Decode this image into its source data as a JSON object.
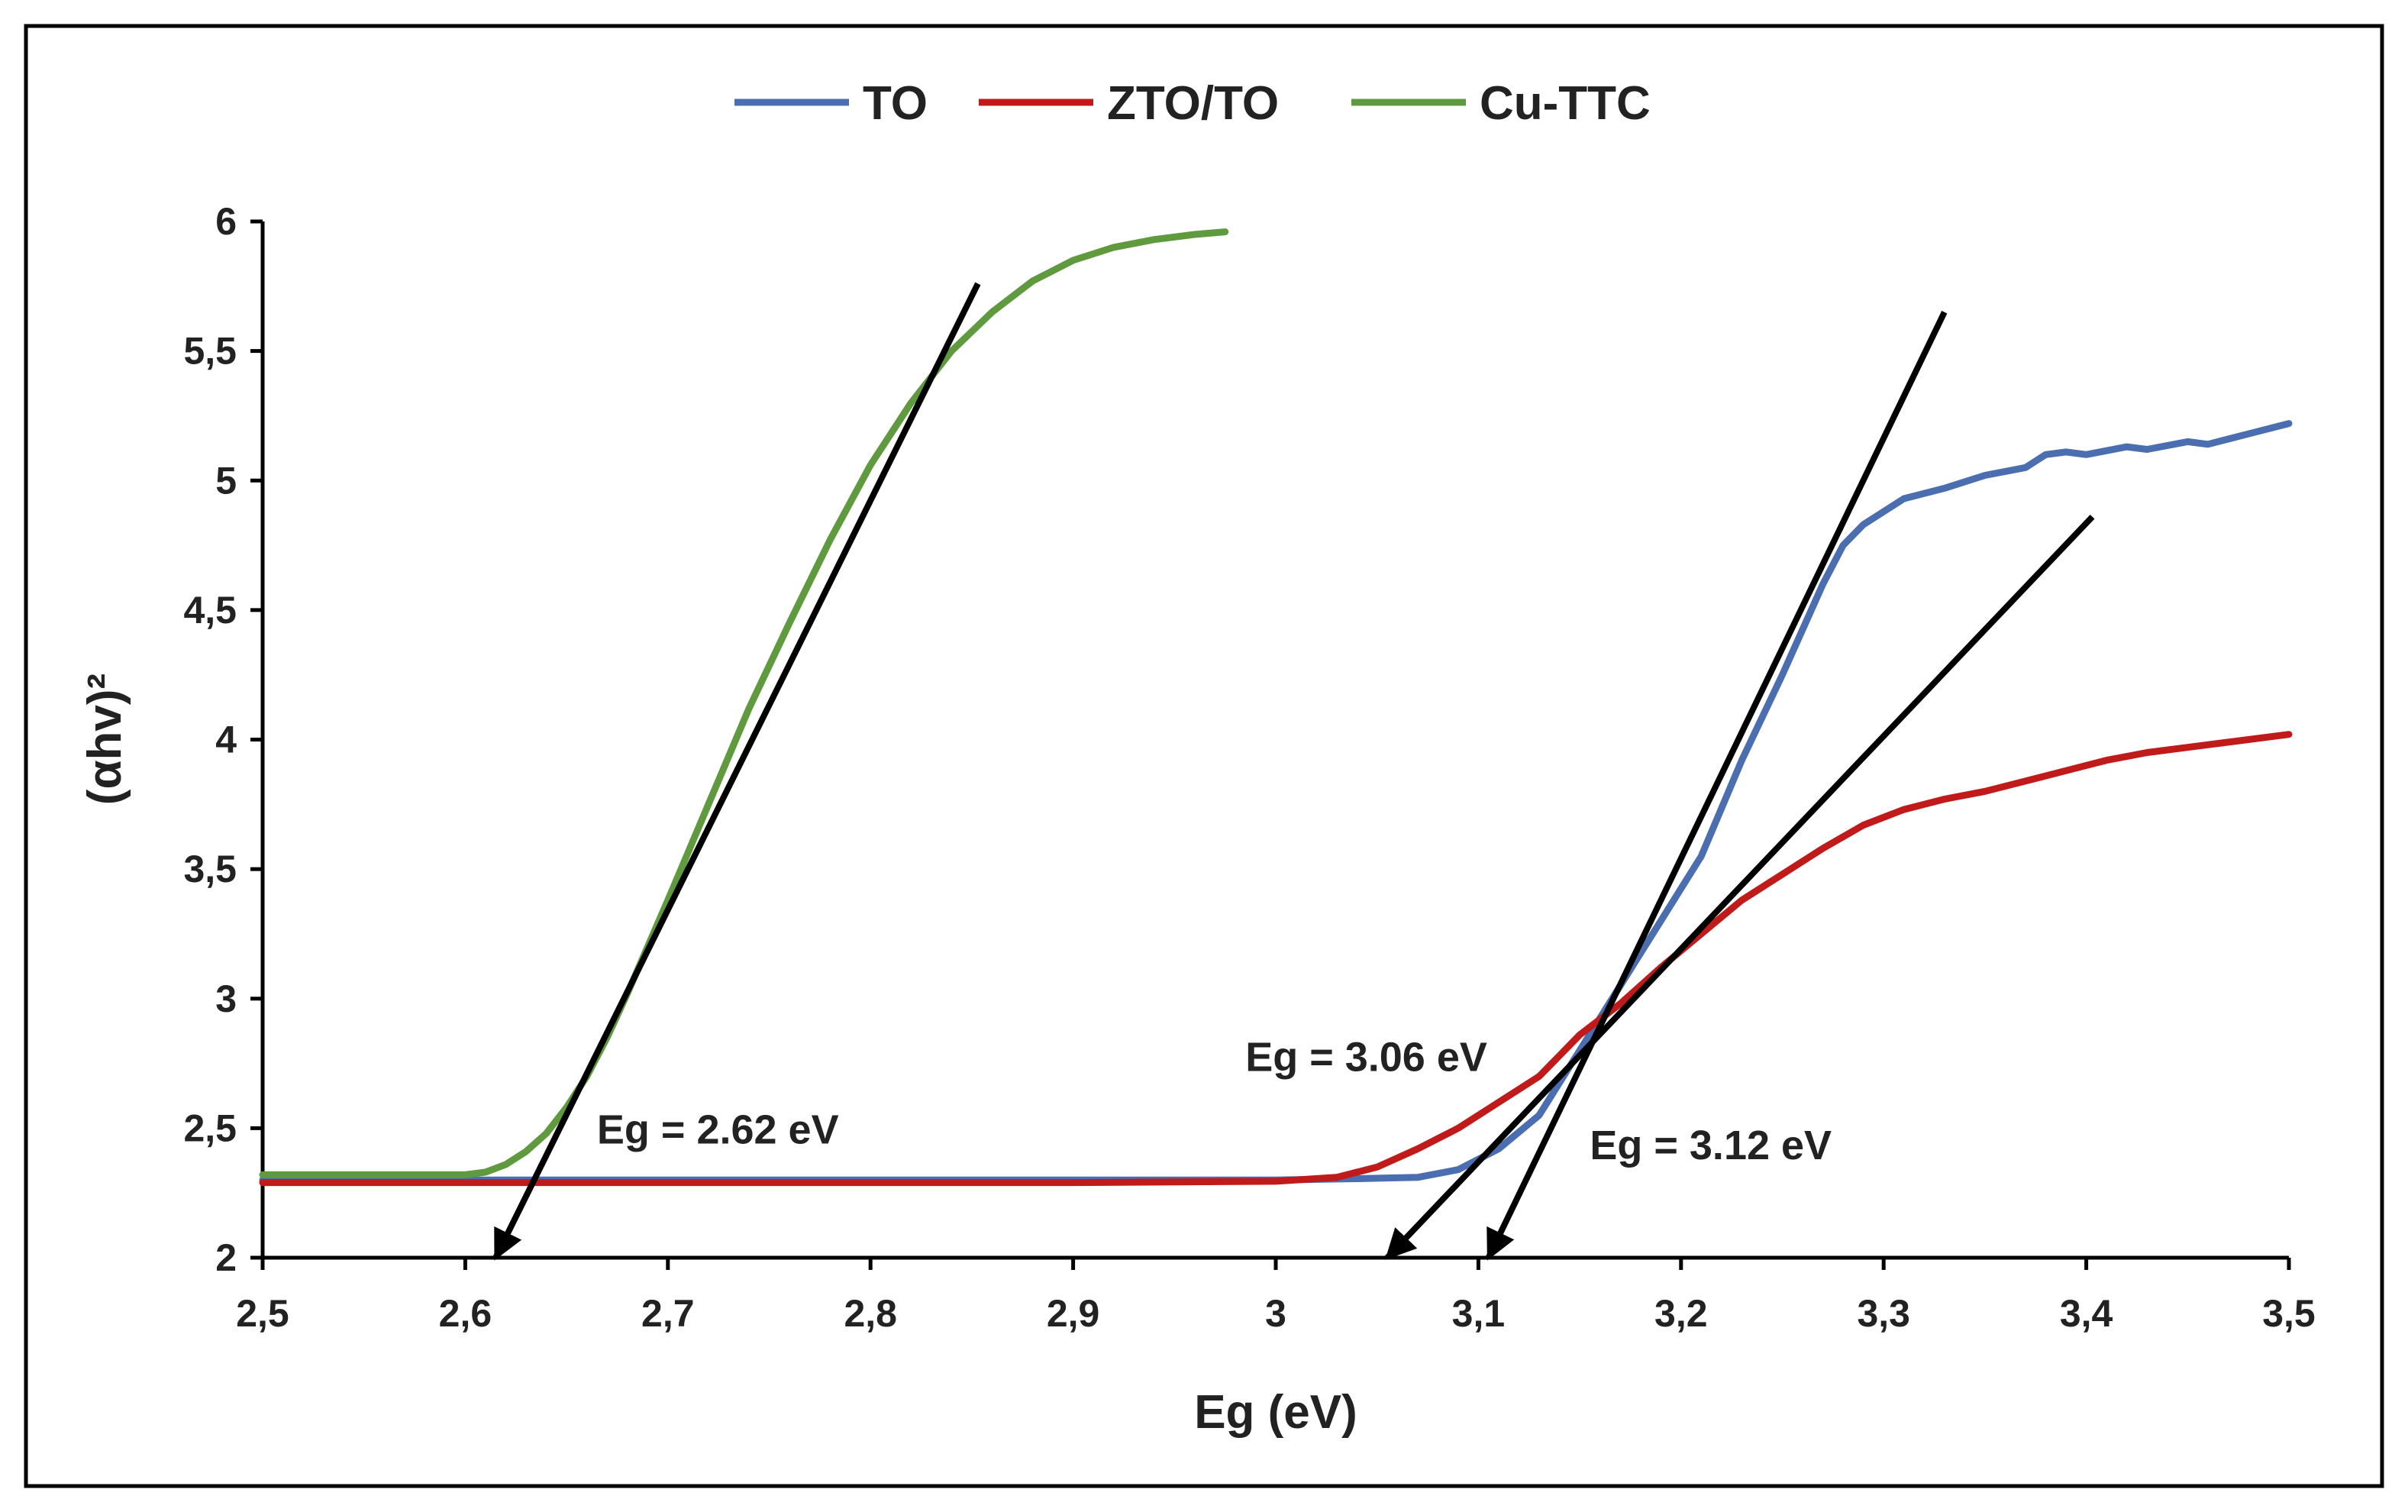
{
  "chart_data": {
    "type": "line",
    "title": "",
    "xlabel": "Eg (eV)",
    "ylabel": "(αhv)²",
    "xlim": [
      2.5,
      3.5
    ],
    "ylim": [
      2,
      6
    ],
    "x_ticks": [
      2.5,
      2.6,
      2.7,
      2.8,
      2.9,
      3.0,
      3.1,
      3.2,
      3.3,
      3.4,
      3.5
    ],
    "x_tick_labels": [
      "2,5",
      "2,6",
      "2,7",
      "2,8",
      "2,9",
      "3",
      "3,1",
      "3,2",
      "3,3",
      "3,4",
      "3,5"
    ],
    "y_ticks": [
      2,
      2.5,
      3,
      3.5,
      4,
      4.5,
      5,
      5.5,
      6
    ],
    "y_tick_labels": [
      "2",
      "2,5",
      "3",
      "3,5",
      "4",
      "4,5",
      "5",
      "5,5",
      "6"
    ],
    "grid": false,
    "legend_position": "top-center",
    "series": [
      {
        "name": "TO",
        "color": "#4a6eb0",
        "points": [
          [
            2.5,
            2.3
          ],
          [
            2.7,
            2.3
          ],
          [
            2.9,
            2.3
          ],
          [
            3.0,
            2.3
          ],
          [
            3.04,
            2.305
          ],
          [
            3.07,
            2.31
          ],
          [
            3.09,
            2.34
          ],
          [
            3.11,
            2.42
          ],
          [
            3.13,
            2.55
          ],
          [
            3.15,
            2.8
          ],
          [
            3.17,
            3.05
          ],
          [
            3.19,
            3.3
          ],
          [
            3.21,
            3.55
          ],
          [
            3.23,
            3.92
          ],
          [
            3.25,
            4.25
          ],
          [
            3.27,
            4.6
          ],
          [
            3.28,
            4.75
          ],
          [
            3.29,
            4.83
          ],
          [
            3.31,
            4.93
          ],
          [
            3.33,
            4.97
          ],
          [
            3.35,
            5.02
          ],
          [
            3.37,
            5.05
          ],
          [
            3.38,
            5.1
          ],
          [
            3.39,
            5.11
          ],
          [
            3.4,
            5.1
          ],
          [
            3.42,
            5.13
          ],
          [
            3.43,
            5.12
          ],
          [
            3.45,
            5.15
          ],
          [
            3.46,
            5.14
          ],
          [
            3.48,
            5.18
          ],
          [
            3.5,
            5.22
          ]
        ]
      },
      {
        "name": "ZTO/TO",
        "color": "#c01a1a",
        "points": [
          [
            2.5,
            2.29
          ],
          [
            2.7,
            2.29
          ],
          [
            2.9,
            2.29
          ],
          [
            3.0,
            2.295
          ],
          [
            3.03,
            2.31
          ],
          [
            3.05,
            2.35
          ],
          [
            3.07,
            2.42
          ],
          [
            3.09,
            2.5
          ],
          [
            3.11,
            2.6
          ],
          [
            3.13,
            2.7
          ],
          [
            3.14,
            2.78
          ],
          [
            3.15,
            2.86
          ],
          [
            3.17,
            2.98
          ],
          [
            3.19,
            3.12
          ],
          [
            3.21,
            3.25
          ],
          [
            3.23,
            3.38
          ],
          [
            3.25,
            3.48
          ],
          [
            3.27,
            3.58
          ],
          [
            3.29,
            3.67
          ],
          [
            3.31,
            3.73
          ],
          [
            3.33,
            3.77
          ],
          [
            3.35,
            3.8
          ],
          [
            3.37,
            3.84
          ],
          [
            3.39,
            3.88
          ],
          [
            3.41,
            3.92
          ],
          [
            3.43,
            3.95
          ],
          [
            3.45,
            3.97
          ],
          [
            3.47,
            3.99
          ],
          [
            3.5,
            4.02
          ]
        ]
      },
      {
        "name": "Cu-TTC",
        "color": "#5f9a3e",
        "points": [
          [
            2.5,
            2.32
          ],
          [
            2.55,
            2.32
          ],
          [
            2.6,
            2.32
          ],
          [
            2.61,
            2.33
          ],
          [
            2.62,
            2.36
          ],
          [
            2.63,
            2.41
          ],
          [
            2.64,
            2.48
          ],
          [
            2.65,
            2.58
          ],
          [
            2.66,
            2.7
          ],
          [
            2.67,
            2.85
          ],
          [
            2.68,
            3.02
          ],
          [
            2.7,
            3.38
          ],
          [
            2.72,
            3.75
          ],
          [
            2.74,
            4.12
          ],
          [
            2.76,
            4.45
          ],
          [
            2.78,
            4.77
          ],
          [
            2.8,
            5.06
          ],
          [
            2.82,
            5.3
          ],
          [
            2.84,
            5.5
          ],
          [
            2.86,
            5.65
          ],
          [
            2.88,
            5.77
          ],
          [
            2.9,
            5.85
          ],
          [
            2.92,
            5.9
          ],
          [
            2.94,
            5.93
          ],
          [
            2.96,
            5.95
          ],
          [
            2.975,
            5.96
          ]
        ]
      }
    ],
    "tangent_lines": [
      {
        "name": "tangent-cu-ttc",
        "from": [
          2.615,
          2.0
        ],
        "to": [
          2.853,
          5.76
        ]
      },
      {
        "name": "tangent-to",
        "from": [
          3.105,
          2.0
        ],
        "to": [
          3.33,
          5.65
        ]
      },
      {
        "name": "tangent-zto-to",
        "from": [
          3.055,
          2.0
        ],
        "to": [
          3.403,
          4.86
        ]
      }
    ],
    "annotations": [
      {
        "text": "Eg = 2.62 eV",
        "x": 2.665,
        "y": 2.44
      },
      {
        "text": "Eg = 3.06 eV",
        "x": 2.985,
        "y": 2.72
      },
      {
        "text": "Eg = 3.12 eV",
        "x": 3.155,
        "y": 2.38
      }
    ]
  }
}
